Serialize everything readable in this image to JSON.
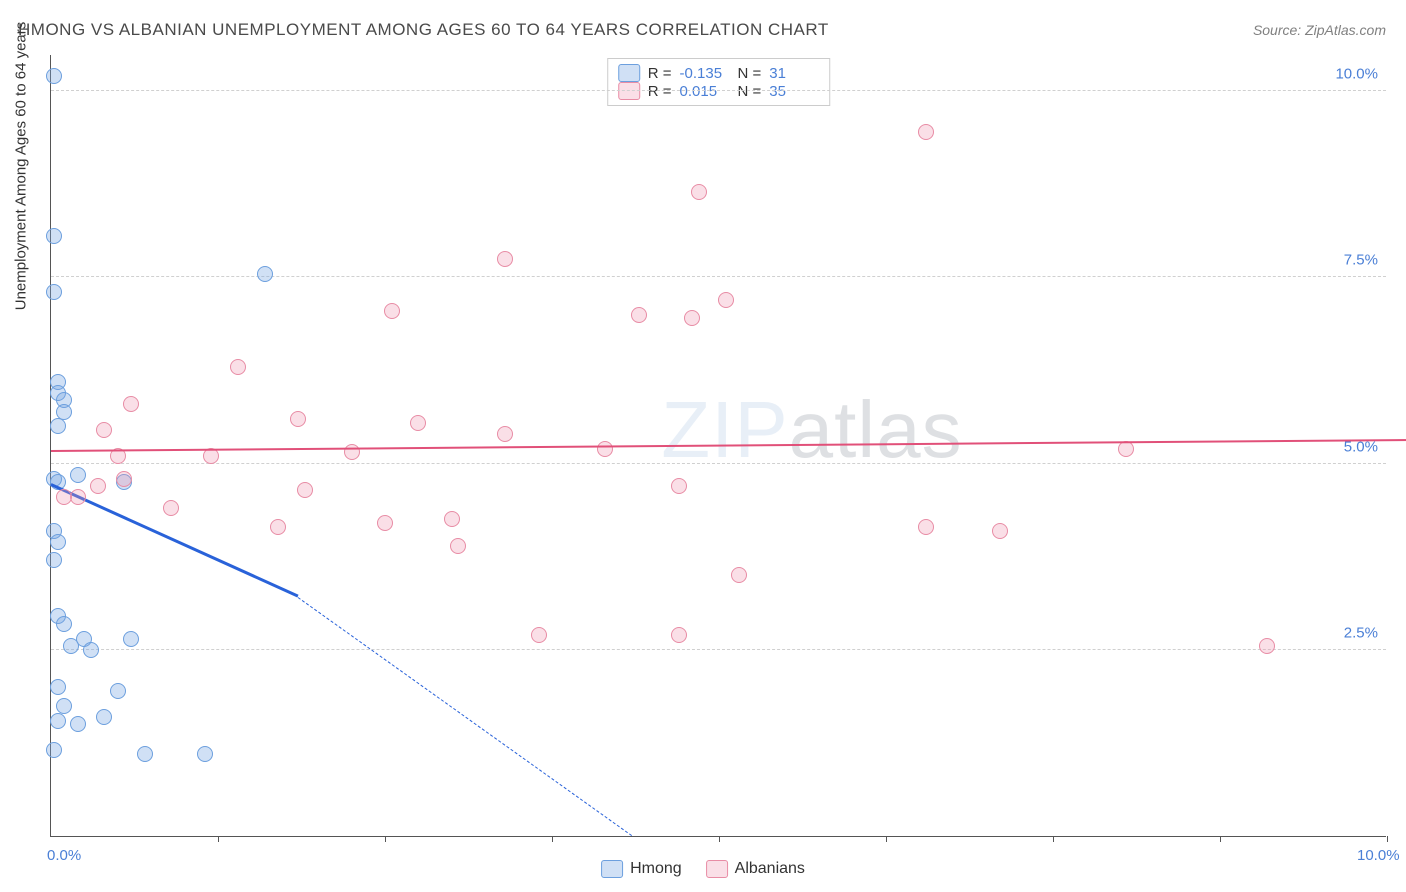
{
  "title": "HMONG VS ALBANIAN UNEMPLOYMENT AMONG AGES 60 TO 64 YEARS CORRELATION CHART",
  "source": "Source: ZipAtlas.com",
  "watermark": {
    "part1": "ZIP",
    "part2": "atlas"
  },
  "chart": {
    "type": "scatter",
    "background_color": "#ffffff",
    "grid_color": "#d0d0d0",
    "axis_color": "#555555",
    "xlim": [
      0,
      10
    ],
    "ylim": [
      0,
      10.5
    ],
    "y_axis_title": "Unemployment Among Ages 60 to 64 years",
    "y_axis_title_fontsize": 15,
    "y_tick_labels": [
      {
        "v": 2.5,
        "label": "2.5%"
      },
      {
        "v": 5.0,
        "label": "5.0%"
      },
      {
        "v": 7.5,
        "label": "7.5%"
      },
      {
        "v": 10.0,
        "label": "10.0%"
      }
    ],
    "x_tick_positions": [
      1.25,
      2.5,
      3.75,
      5.0,
      6.25,
      7.5,
      8.75,
      10.0
    ],
    "x_tick_labels": [
      {
        "v": 0,
        "label": "0.0%"
      },
      {
        "v": 10,
        "label": "10.0%"
      }
    ],
    "marker_size": 16,
    "series": [
      {
        "name": "Hmong",
        "color_fill": "rgba(120,165,225,0.35)",
        "color_stroke": "#6c9fde",
        "R": "-0.135",
        "N": "31",
        "trend": {
          "solid": {
            "x1": 0.0,
            "y1": 4.7,
            "x2": 1.85,
            "y2": 3.2,
            "color": "#2962d9",
            "width": 3
          },
          "dashed": {
            "x1": 1.85,
            "y1": 3.2,
            "x2": 4.35,
            "y2": 0.0,
            "color": "#2962d9",
            "width": 1.5
          }
        },
        "points": [
          [
            0.02,
            10.2
          ],
          [
            0.02,
            8.05
          ],
          [
            0.02,
            7.3
          ],
          [
            0.05,
            6.1
          ],
          [
            0.05,
            5.95
          ],
          [
            0.1,
            5.85
          ],
          [
            0.1,
            5.7
          ],
          [
            0.05,
            5.5
          ],
          [
            0.02,
            4.8
          ],
          [
            0.05,
            4.75
          ],
          [
            0.2,
            4.85
          ],
          [
            0.02,
            4.1
          ],
          [
            0.05,
            3.95
          ],
          [
            0.02,
            3.7
          ],
          [
            0.05,
            2.95
          ],
          [
            0.1,
            2.85
          ],
          [
            0.25,
            2.65
          ],
          [
            0.6,
            2.65
          ],
          [
            0.15,
            2.55
          ],
          [
            0.3,
            2.5
          ],
          [
            0.05,
            2.0
          ],
          [
            0.1,
            1.75
          ],
          [
            0.5,
            1.95
          ],
          [
            0.05,
            1.55
          ],
          [
            0.2,
            1.5
          ],
          [
            0.4,
            1.6
          ],
          [
            0.02,
            1.15
          ],
          [
            0.7,
            1.1
          ],
          [
            1.15,
            1.1
          ],
          [
            1.6,
            7.55
          ],
          [
            0.55,
            4.75
          ]
        ]
      },
      {
        "name": "Albanians",
        "color_fill": "rgba(240,150,175,0.3)",
        "color_stroke": "#e88ca5",
        "R": "0.015",
        "N": "35",
        "trend": {
          "solid": {
            "x1": 0.0,
            "y1": 5.15,
            "x2": 10.3,
            "y2": 5.3,
            "color": "#e15079",
            "width": 2
          }
        },
        "points": [
          [
            0.2,
            4.55
          ],
          [
            0.35,
            4.7
          ],
          [
            0.4,
            5.45
          ],
          [
            0.5,
            5.1
          ],
          [
            0.55,
            4.8
          ],
          [
            0.9,
            4.4
          ],
          [
            0.6,
            5.8
          ],
          [
            1.2,
            5.1
          ],
          [
            1.4,
            6.3
          ],
          [
            1.85,
            5.6
          ],
          [
            1.9,
            4.65
          ],
          [
            1.7,
            4.15
          ],
          [
            2.25,
            5.15
          ],
          [
            2.5,
            4.2
          ],
          [
            2.55,
            7.05
          ],
          [
            2.75,
            5.55
          ],
          [
            3.0,
            4.25
          ],
          [
            3.05,
            3.9
          ],
          [
            3.4,
            7.75
          ],
          [
            3.4,
            5.4
          ],
          [
            3.65,
            2.7
          ],
          [
            4.15,
            5.2
          ],
          [
            4.4,
            7.0
          ],
          [
            4.7,
            4.7
          ],
          [
            4.7,
            2.7
          ],
          [
            4.8,
            6.95
          ],
          [
            4.85,
            8.65
          ],
          [
            5.05,
            7.2
          ],
          [
            5.15,
            3.5
          ],
          [
            6.55,
            9.45
          ],
          [
            6.55,
            4.15
          ],
          [
            7.1,
            4.1
          ],
          [
            8.05,
            5.2
          ],
          [
            9.1,
            2.55
          ],
          [
            0.1,
            4.55
          ]
        ]
      }
    ]
  },
  "legend_bottom": [
    {
      "swatch": "blue",
      "label": "Hmong"
    },
    {
      "swatch": "pink",
      "label": "Albanians"
    }
  ]
}
